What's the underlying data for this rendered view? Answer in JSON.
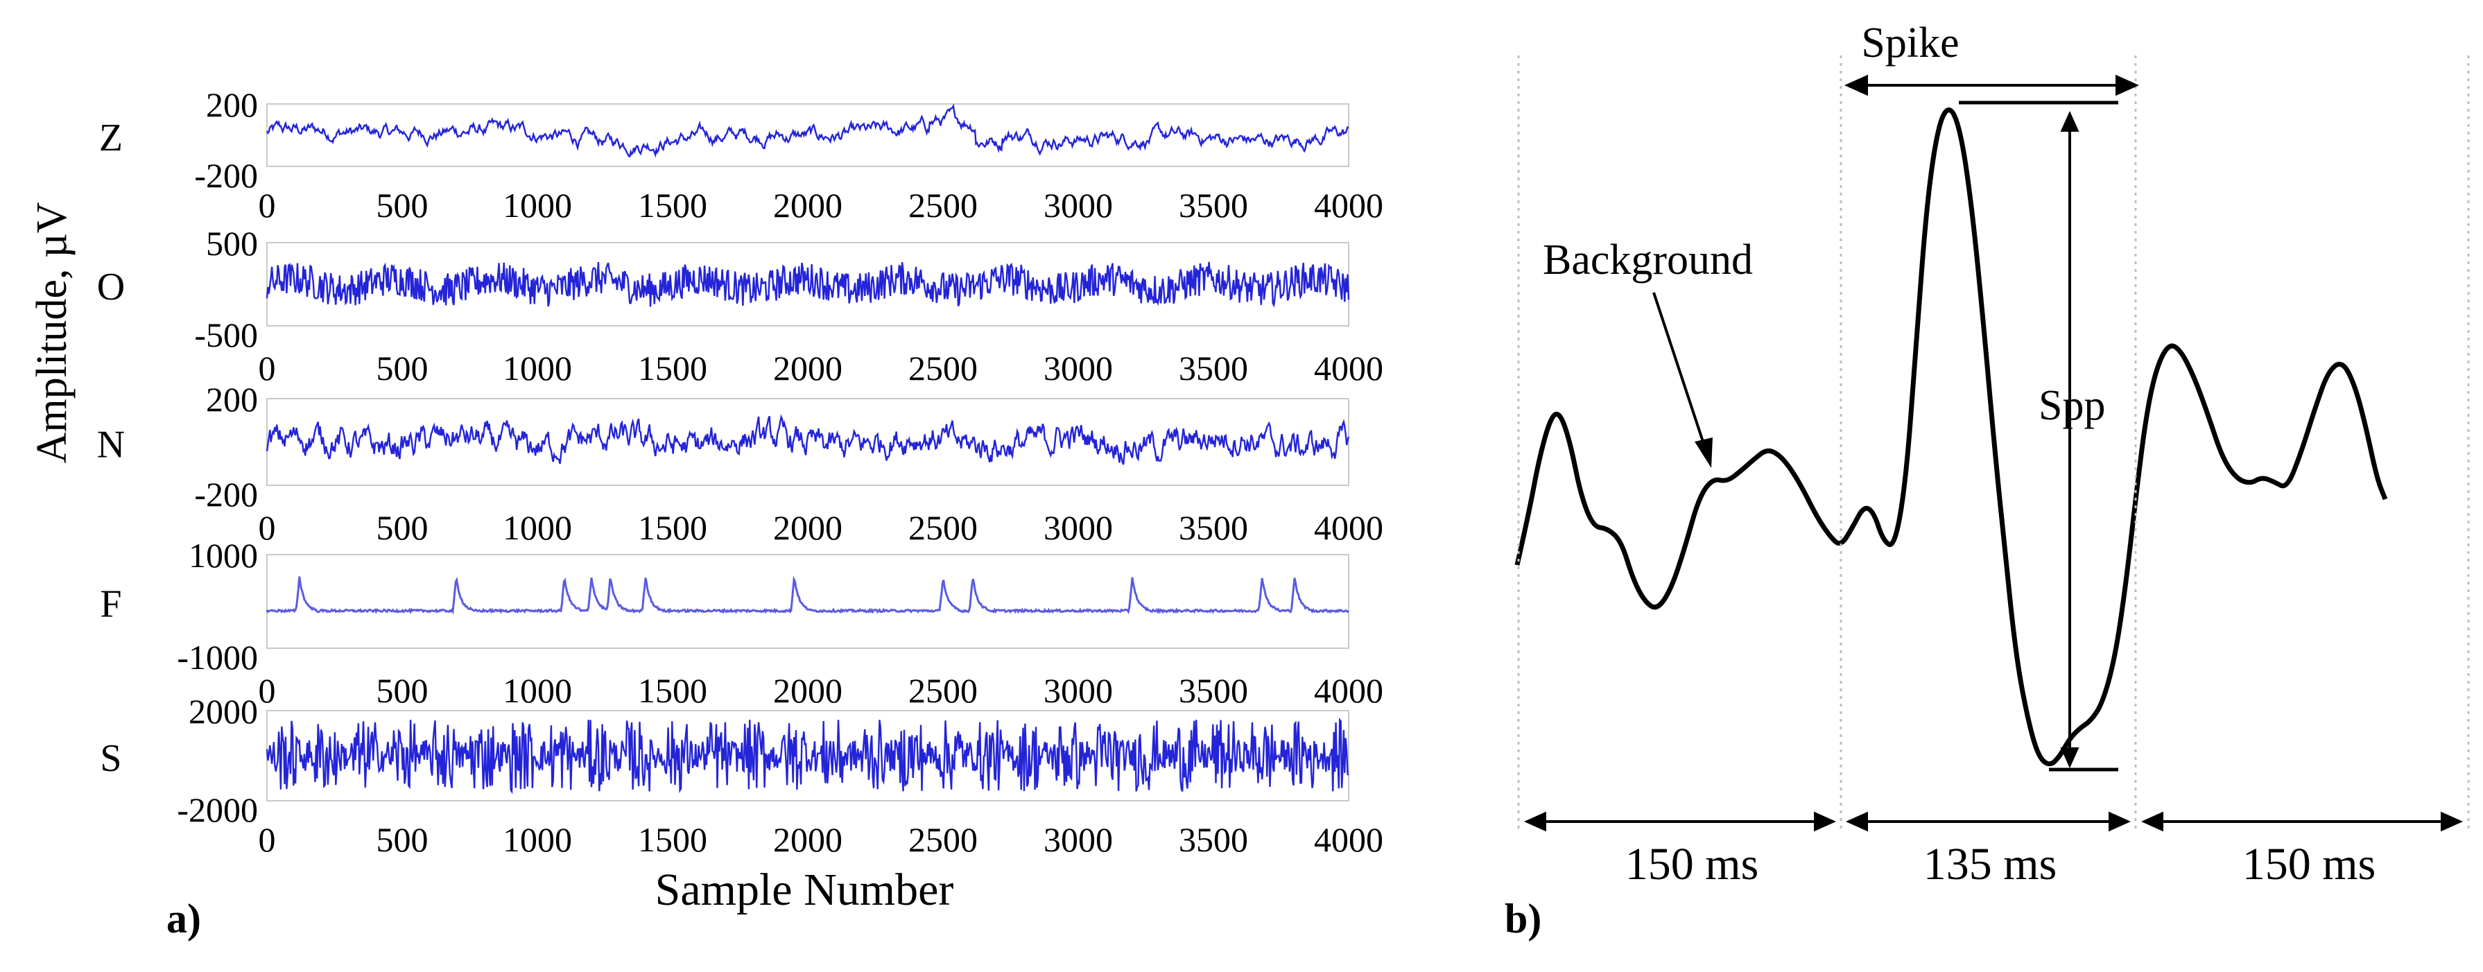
{
  "figure": {
    "panel_a_label": "a)",
    "panel_b_label": "b)"
  },
  "chart_data": [
    {
      "type": "line",
      "panel": "a",
      "ylabel": "Amplitude, µV",
      "xlabel": "Sample Number",
      "xlim": [
        0,
        4000
      ],
      "xticks": [
        "0",
        "500",
        "1000",
        "1500",
        "2000",
        "2500",
        "3000",
        "3500",
        "4000"
      ],
      "line_color": "#2424d8",
      "series": [
        {
          "name": "Z",
          "ylim": [
            -200,
            200
          ],
          "yticks": [
            "200",
            "-200"
          ]
        },
        {
          "name": "O",
          "ylim": [
            -500,
            500
          ],
          "yticks": [
            "500",
            "-500"
          ]
        },
        {
          "name": "N",
          "ylim": [
            -200,
            200
          ],
          "yticks": [
            "200",
            "-200"
          ]
        },
        {
          "name": "F",
          "ylim": [
            -1000,
            1000
          ],
          "yticks": [
            "1000",
            "-1000"
          ],
          "spike_samples": [
            120,
            700,
            1100,
            1200,
            1270,
            1400,
            1950,
            2500,
            2610,
            3200,
            3680,
            3800
          ]
        },
        {
          "name": "S",
          "ylim": [
            -2000,
            2000
          ],
          "yticks": [
            "2000",
            "-2000"
          ]
        }
      ]
    },
    {
      "type": "line",
      "panel": "b",
      "line_color": "#000000",
      "segments": [
        "150 ms",
        "135 ms",
        "150 ms"
      ],
      "annotations": [
        "Spike",
        "Background",
        "Spp"
      ]
    }
  ]
}
